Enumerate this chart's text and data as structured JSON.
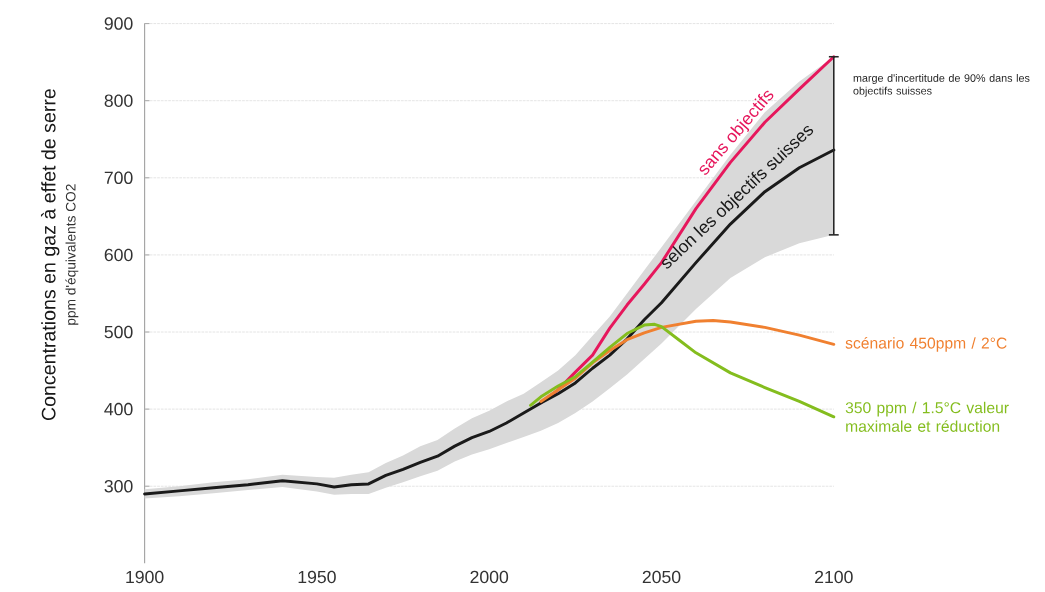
{
  "chart_data": {
    "type": "line",
    "ylabel": "Concentrations en gaz à effet de serre",
    "annotations": [
      "ppm d'équivalents CO2",
      "marge d'incertitude de 90% dans les objectifs suisses"
    ],
    "xlim": [
      1900,
      2100
    ],
    "ylim": [
      200,
      900
    ],
    "xticks": [
      1900,
      1950,
      2000,
      2050,
      2100
    ],
    "yticks": [
      300,
      400,
      500,
      600,
      700,
      800,
      900
    ],
    "grid": true,
    "legend": false,
    "line_style": "solid",
    "marker": "none",
    "series": [
      {
        "name": "sans objectifs",
        "color": "#e6175c",
        "x": [
          2015,
          2020,
          2025,
          2030,
          2035,
          2040,
          2045,
          2050,
          2060,
          2070,
          2080,
          2090,
          2100
        ],
        "values": [
          408,
          425,
          448,
          470,
          505,
          535,
          562,
          590,
          660,
          720,
          772,
          815,
          857
        ]
      },
      {
        "name": "selon les objectifs suisses",
        "color": "#1a1a1a",
        "x": [
          1900,
          1910,
          1920,
          1930,
          1940,
          1950,
          1955,
          1960,
          1965,
          1970,
          1975,
          1980,
          1985,
          1990,
          1995,
          2000,
          2005,
          2010,
          2015,
          2020,
          2025,
          2030,
          2035,
          2040,
          2045,
          2050,
          2060,
          2070,
          2080,
          2090,
          2100
        ],
        "values": [
          290,
          294,
          298,
          302,
          307,
          303,
          299,
          302,
          303,
          314,
          322,
          331,
          339,
          352,
          363,
          371,
          382,
          395,
          408,
          420,
          434,
          453,
          470,
          491,
          516,
          538,
          590,
          640,
          682,
          713,
          736
        ],
        "lower": [
          284,
          287,
          291,
          295,
          299,
          293,
          289,
          290,
          290,
          298,
          305,
          313,
          320,
          332,
          341,
          348,
          356,
          364,
          372,
          382,
          395,
          410,
          427,
          445,
          465,
          485,
          530,
          570,
          597,
          615,
          626
        ],
        "upper": [
          296,
          300,
          305,
          309,
          315,
          312,
          311,
          315,
          318,
          330,
          340,
          352,
          360,
          375,
          388,
          398,
          410,
          420,
          435,
          450,
          470,
          495,
          520,
          550,
          580,
          610,
          670,
          730,
          785,
          825,
          857
        ],
        "errors": [
          null,
          null,
          null,
          null,
          null,
          null,
          null,
          null,
          null,
          null,
          null,
          null,
          null,
          null,
          null,
          null,
          null,
          null,
          null,
          null,
          null,
          null,
          null,
          null,
          null,
          null,
          null,
          null,
          null,
          null,
          [
            626,
            857
          ]
        ]
      },
      {
        "name": "scénario 450ppm / 2°C",
        "color": "#f08030",
        "x": [
          2015,
          2020,
          2025,
          2030,
          2035,
          2040,
          2045,
          2050,
          2060,
          2065,
          2070,
          2080,
          2090,
          2100
        ],
        "values": [
          410,
          425,
          440,
          460,
          476,
          490,
          499,
          506,
          514,
          515,
          513,
          506,
          496,
          484
        ]
      },
      {
        "name": "350 ppm / 1.5°C valeur maximale et réduction",
        "color": "#84bd1e",
        "x": [
          2012,
          2015,
          2020,
          2025,
          2030,
          2035,
          2040,
          2045,
          2048,
          2050,
          2055,
          2060,
          2070,
          2080,
          2090,
          2100
        ],
        "values": [
          405,
          416,
          430,
          442,
          461,
          480,
          498,
          509,
          510,
          507,
          490,
          473,
          447,
          428,
          410,
          390
        ]
      }
    ]
  }
}
